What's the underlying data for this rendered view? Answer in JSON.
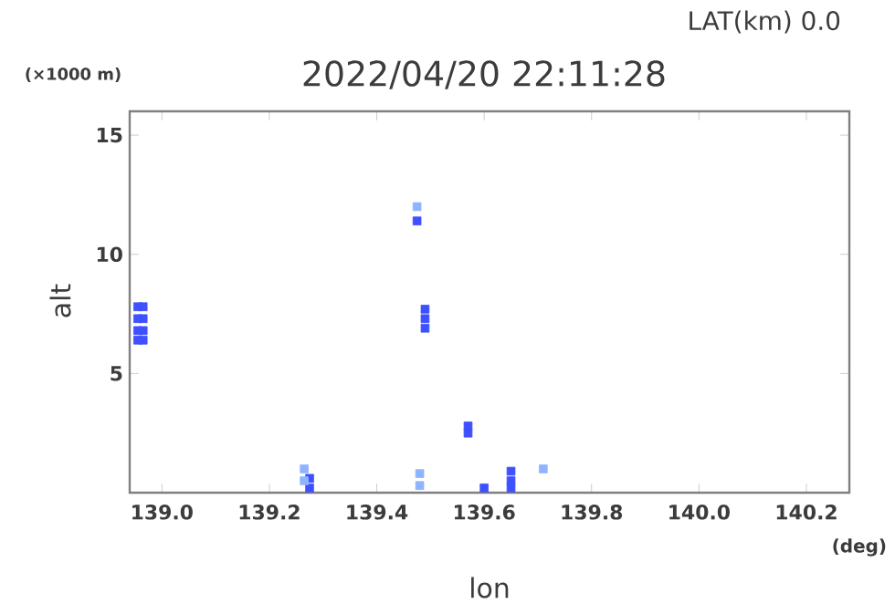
{
  "chart_data": {
    "type": "scatter",
    "title": "2022/04/20 22:11:28",
    "subtitle": "LAT(km) 0.0",
    "xlabel": "lon",
    "ylabel": "alt",
    "annotations": [
      "(×1000 m)",
      "(deg)"
    ],
    "marker": "square",
    "legend": false,
    "grid": false,
    "xlim": [
      138.94,
      140.28
    ],
    "ylim": [
      0,
      16
    ],
    "xticks": [
      {
        "value": 139.0,
        "label": "139.0"
      },
      {
        "value": 139.2,
        "label": "139.2"
      },
      {
        "value": 139.4,
        "label": "139.4"
      },
      {
        "value": 139.6,
        "label": "139.6"
      },
      {
        "value": 139.8,
        "label": "139.8"
      },
      {
        "value": 140.0,
        "label": "140.0"
      },
      {
        "value": 140.2,
        "label": "140.2"
      }
    ],
    "yticks": [
      5,
      10,
      15
    ],
    "series": [
      {
        "color": "#3f50ff",
        "x": [
          138.955,
          138.955,
          138.955,
          138.955,
          138.965,
          138.965,
          138.965,
          138.965,
          139.49,
          139.49,
          139.49,
          139.475,
          139.57,
          139.57,
          139.275,
          139.275,
          139.6,
          139.65,
          139.65,
          139.65
        ],
        "values": [
          7.8,
          7.3,
          6.8,
          6.4,
          7.8,
          7.3,
          6.8,
          6.4,
          7.7,
          7.3,
          6.9,
          11.4,
          2.8,
          2.5,
          0.6,
          0.2,
          0.2,
          0.9,
          0.5,
          0.2
        ]
      },
      {
        "color": "#8fb4ff",
        "x": [
          139.265,
          139.265,
          139.48,
          139.48,
          139.475,
          139.71
        ],
        "values": [
          1.0,
          0.5,
          0.8,
          0.3,
          12.0,
          1.0
        ]
      }
    ]
  }
}
